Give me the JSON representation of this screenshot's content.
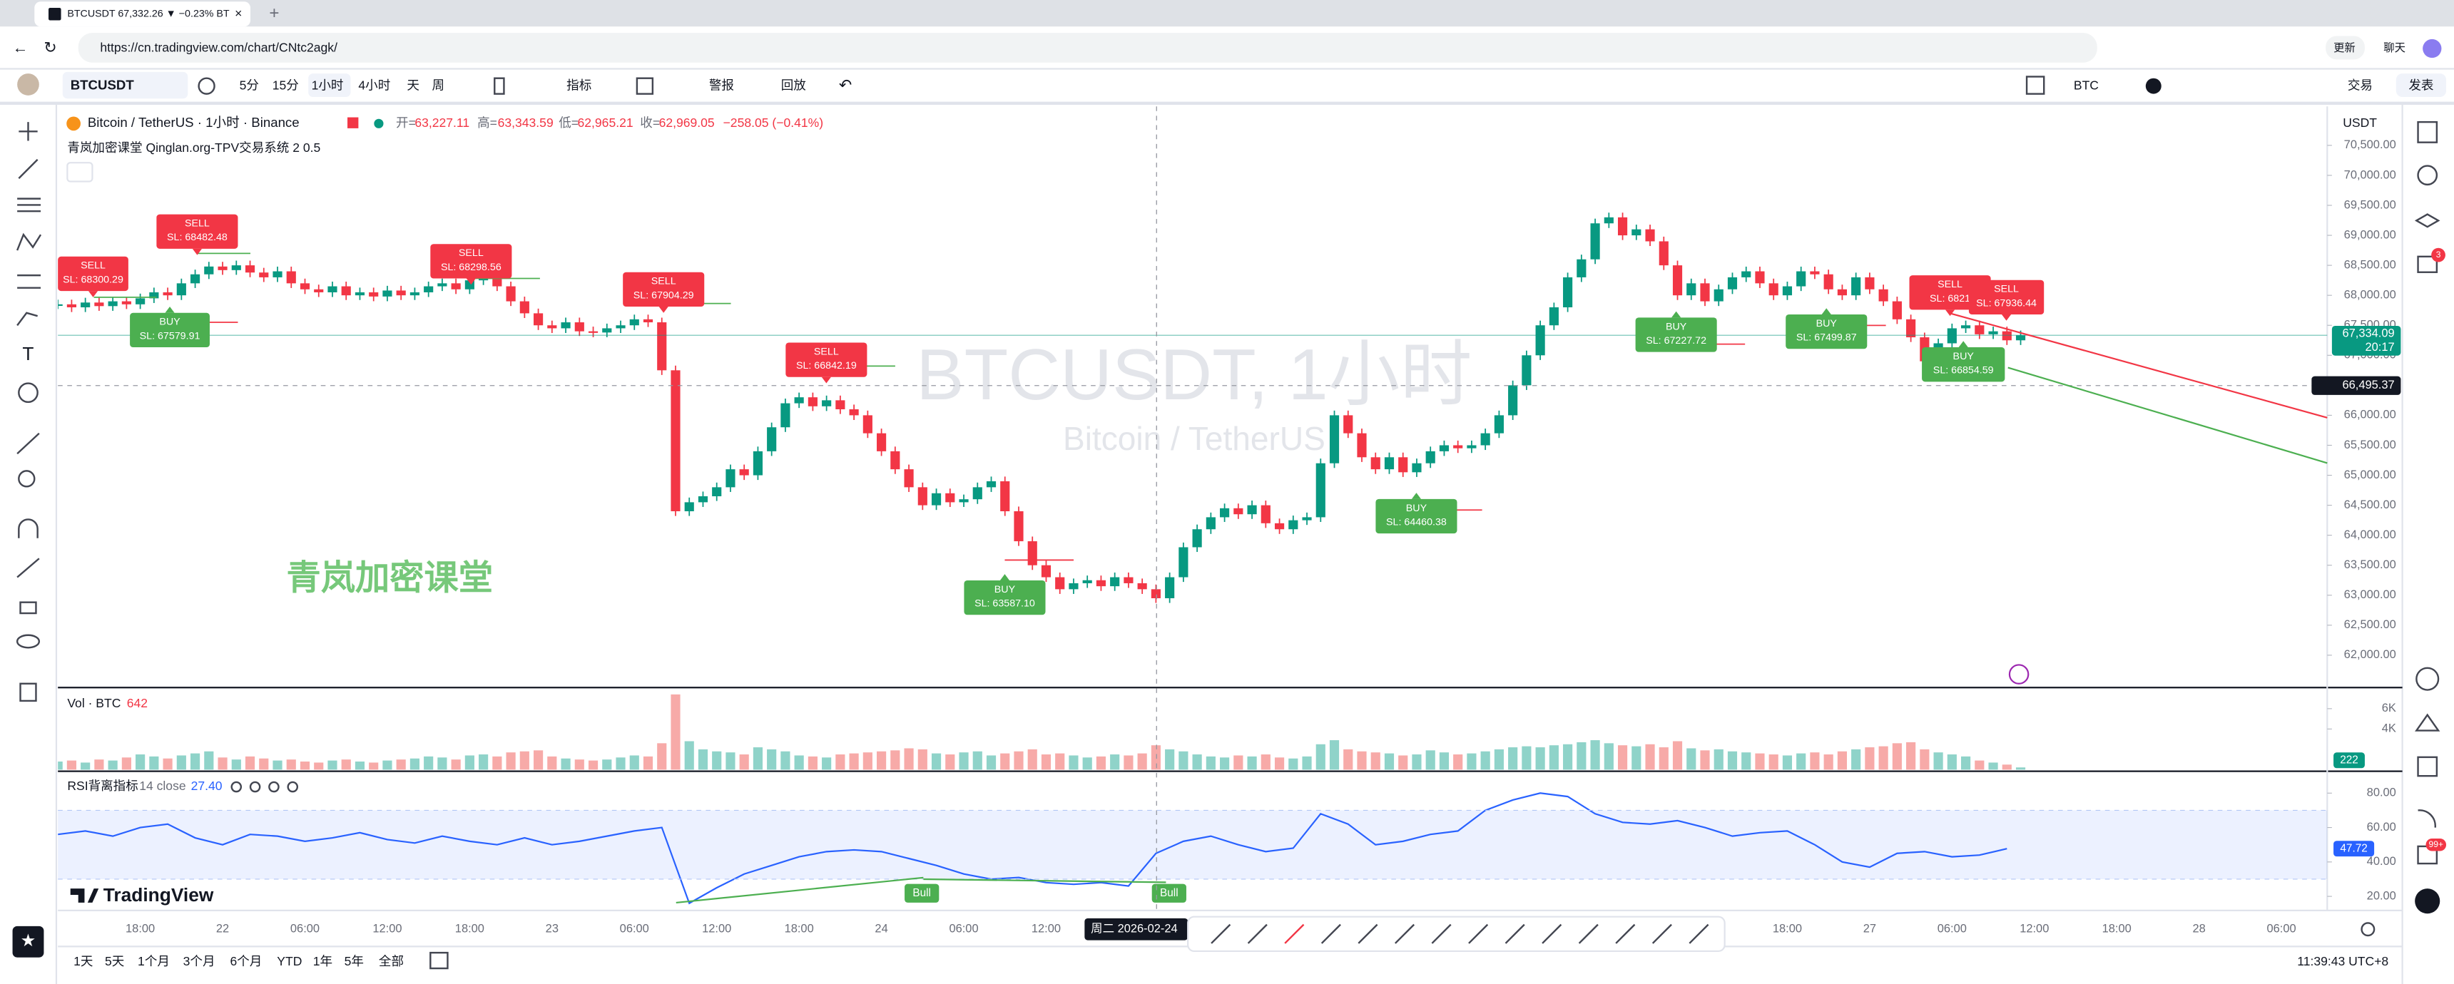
{
  "browser": {
    "tab_title": "BTCUSDT 67,332.26 ▼ −0.23% BT",
    "url": "https://cn.tradingview.com/chart/CNtc2agk/",
    "update": "更新",
    "chat": "聊天"
  },
  "toolbar": {
    "symbol": "BTCUSDT",
    "intervals": [
      "5分",
      "15分",
      "1小时",
      "4小时",
      "天",
      "周"
    ],
    "indicators": "指标",
    "alerts": "警报",
    "replay": "回放",
    "currency": "BTC",
    "trade": "交易",
    "publish": "发表"
  },
  "right_toolbar": {
    "badges": [
      "3",
      "99+"
    ]
  },
  "legend": {
    "title": "Bitcoin / TetherUS · 1小时 · Binance",
    "ohlc": [
      {
        "label": "开=",
        "value": "63,227.11"
      },
      {
        "label": "高=",
        "value": "63,343.59"
      },
      {
        "label": "低=",
        "value": "62,965.21"
      },
      {
        "label": "收=",
        "value": "62,969.05"
      }
    ],
    "change": "−258.05 (−0.41%)",
    "indicator": "青岚加密课堂 Qinglan.org-TPV交易系统 2 0.5"
  },
  "watermark": {
    "symbol": "BTCUSDT, 1小时",
    "name": "Bitcoin / TetherUS"
  },
  "brand_text": "青岚加密课堂",
  "logo": "TradingView",
  "signals": [
    {
      "type": "SELL",
      "sl": "SL: 68300.29"
    },
    {
      "type": "SELL",
      "sl": "SL: 68482.48"
    },
    {
      "type": "BUY",
      "sl": "SL: 67579.91"
    },
    {
      "type": "SELL",
      "sl": "SL: 68298.56"
    },
    {
      "type": "SELL",
      "sl": "SL: 67904.29"
    },
    {
      "type": "SELL",
      "sl": "SL: 66842.19"
    },
    {
      "type": "BUY",
      "sl": "SL: 63587.10"
    },
    {
      "type": "BUY",
      "sl": "SL: 64460.38"
    },
    {
      "type": "BUY",
      "sl": "SL: 67227.72"
    },
    {
      "type": "BUY",
      "sl": "SL: 67499.87"
    },
    {
      "type": "SELL",
      "sl": "SL: 6821"
    },
    {
      "type": "SELL",
      "sl": "SL: 67936.44"
    },
    {
      "type": "BUY",
      "sl": "SL: 66854.59"
    }
  ],
  "volume_legend": {
    "title": "Vol · BTC",
    "value": "642"
  },
  "rsi_legend": {
    "title": "RSI背离指标",
    "params": "14 close",
    "value": "27.40"
  },
  "divergence_labels": [
    "Bull",
    "Bull"
  ],
  "price_axis": {
    "currency": "USDT",
    "countdown": "20:17"
  },
  "time_axis": {
    "labels": [
      "18:00",
      "22",
      "06:00",
      "12:00",
      "18:00",
      "23",
      "06:00",
      "12:00",
      "18:00",
      "24",
      "06:00",
      "12:00",
      null,
      null,
      null,
      null,
      null,
      null,
      null,
      null,
      "18:00",
      "27",
      "06:00",
      "12:00",
      "18:00",
      "28",
      "06:00"
    ],
    "crosshair": "周二 2026-02-24"
  },
  "bottom_bar": {
    "ranges": [
      "1天",
      "5天",
      "1个月",
      "3个月",
      "6个月",
      "YTD",
      "1年",
      "5年",
      "全部"
    ],
    "clock": "11:39:43 UTC+8"
  },
  "chart_data": [
    {
      "type": "candlestick",
      "up_color": "#089981",
      "down_color": "#f23645",
      "ylim": [
        61500,
        71150
      ],
      "yticks": [
        {
          "value": 62000,
          "label": "62,000.00"
        },
        {
          "value": 62500,
          "label": "62,500.00"
        },
        {
          "value": 63000,
          "label": "63,000.00"
        },
        {
          "value": 63500,
          "label": "63,500.00"
        },
        {
          "value": 64000,
          "label": "64,000.00"
        },
        {
          "value": 64500,
          "label": "64,500.00"
        },
        {
          "value": 65000,
          "label": "65,000.00"
        },
        {
          "value": 65500,
          "label": "65,500.00"
        },
        {
          "value": 66000,
          "label": "66,000.00"
        },
        {
          "value": 66500,
          "label": "66,500.00"
        },
        {
          "value": 67000,
          "label": "67,000.00"
        },
        {
          "value": 67500,
          "label": "67,500.00"
        },
        {
          "value": 68000,
          "label": "68,000.00"
        },
        {
          "value": 68500,
          "label": "68,500.00"
        },
        {
          "value": 69000,
          "label": "69,000.00"
        },
        {
          "value": 69500,
          "label": "69,500.00"
        },
        {
          "value": 70000,
          "label": "70,000.00"
        },
        {
          "value": 70500,
          "label": "70,500.00"
        }
      ],
      "last_price": {
        "value": 67334.09,
        "label": "67,334.09"
      },
      "crosshair_price": {
        "value": 66495.37,
        "label": "66,495.37"
      },
      "values": [
        67850,
        67800,
        67880,
        67820,
        67900,
        67850,
        67950,
        68050,
        68000,
        68200,
        68350,
        68480,
        68420,
        68500,
        68380,
        68300,
        68400,
        68200,
        68100,
        68050,
        68150,
        68000,
        68050,
        67980,
        68080,
        68000,
        68050,
        68150,
        68200,
        68100,
        68250,
        68300,
        68150,
        67900,
        67700,
        67500,
        67450,
        67550,
        67400,
        67380,
        67450,
        67500,
        67600,
        67550,
        66750,
        64400,
        64550,
        64650,
        64800,
        65100,
        65000,
        65400,
        65800,
        66200,
        66300,
        66150,
        66250,
        66100,
        66000,
        65700,
        65400,
        65100,
        64800,
        64500,
        64700,
        64550,
        64600,
        64800,
        64900,
        64400,
        63900,
        63500,
        63300,
        63100,
        63200,
        63250,
        63150,
        63300,
        63200,
        63100,
        62950,
        63300,
        63800,
        64100,
        64300,
        64450,
        64350,
        64500,
        64200,
        64100,
        64250,
        64300,
        65200,
        66000,
        65700,
        65300,
        65100,
        65300,
        65050,
        65200,
        65400,
        65500,
        65450,
        65500,
        65700,
        66000,
        66500,
        67000,
        67500,
        67800,
        68300,
        68600,
        69200,
        69300,
        69000,
        69100,
        68900,
        68500,
        68000,
        68200,
        67900,
        68100,
        68300,
        68400,
        68200,
        68000,
        68150,
        68400,
        68350,
        68100,
        68000,
        68300,
        68100,
        67900,
        67600,
        67300,
        66900,
        67200,
        67450,
        67500,
        67350,
        67400,
        67250,
        67334.09
      ]
    },
    {
      "type": "bar",
      "up_color": "#8fd3c9",
      "down_color": "#f7aaa8",
      "ylim": [
        0,
        8000
      ],
      "yticks": [
        {
          "value": 4000,
          "label": "4K"
        },
        {
          "value": 6000,
          "label": "6K"
        }
      ],
      "values": [
        800,
        900,
        700,
        1000,
        900,
        1200,
        1500,
        1300,
        1100,
        1400,
        1600,
        1800,
        1200,
        1000,
        1300,
        1100,
        900,
        1000,
        800,
        700,
        900,
        1000,
        800,
        700,
        900,
        1000,
        1100,
        1300,
        1200,
        1000,
        1400,
        1500,
        1300,
        1700,
        1800,
        1900,
        1300,
        1100,
        1000,
        900,
        1000,
        1200,
        1400,
        1300,
        2600,
        7400,
        2800,
        2000,
        1800,
        1700,
        1500,
        2200,
        2000,
        1800,
        1400,
        1300,
        1200,
        1500,
        1600,
        1700,
        1800,
        1900,
        2100,
        2000,
        1600,
        1500,
        1700,
        1800,
        1400,
        1600,
        1800,
        2000,
        1500,
        1600,
        1400,
        1200,
        1300,
        1500,
        1400,
        1600,
        2400,
        2000,
        1800,
        1500,
        1300,
        1200,
        1400,
        1300,
        1500,
        1200,
        1100,
        1300,
        2500,
        2900,
        2000,
        1800,
        1700,
        1600,
        1400,
        1500,
        1900,
        1700,
        1500,
        1600,
        1800,
        2000,
        2200,
        2300,
        2200,
        2400,
        2500,
        2700,
        2900,
        2600,
        2400,
        2300,
        2500,
        2200,
        2800,
        2100,
        1900,
        2000,
        1800,
        1700,
        1600,
        1500,
        1400,
        1600,
        1700,
        1500,
        1800,
        2000,
        2200,
        2300,
        2600,
        2700,
        2000,
        1700,
        1500,
        1300,
        900,
        700,
        500,
        222
      ]
    },
    {
      "type": "line",
      "color": "#2962ff",
      "band": [
        30,
        70
      ],
      "ylim": [
        11.8,
        91.8
      ],
      "yticks": [
        {
          "value": 20,
          "label": "20.00"
        },
        {
          "value": 40,
          "label": "40.00"
        },
        {
          "value": 60,
          "label": "60.00"
        },
        {
          "value": 80,
          "label": "80.00"
        }
      ],
      "values": [
        56,
        58,
        55,
        60,
        62,
        54,
        50,
        56,
        55,
        52,
        54,
        57,
        53,
        51,
        55,
        52,
        50,
        54,
        50,
        52,
        55,
        58,
        60,
        16,
        25,
        33,
        38,
        43,
        46,
        47,
        46,
        42,
        38,
        33,
        30,
        31,
        28,
        27,
        28,
        26,
        45,
        52,
        55,
        50,
        46,
        48,
        68,
        62,
        50,
        52,
        56,
        58,
        70,
        76,
        80,
        78,
        68,
        63,
        62,
        64,
        60,
        55,
        57,
        58,
        50,
        40,
        37,
        45,
        46,
        43,
        44,
        47.72
      ]
    }
  ]
}
